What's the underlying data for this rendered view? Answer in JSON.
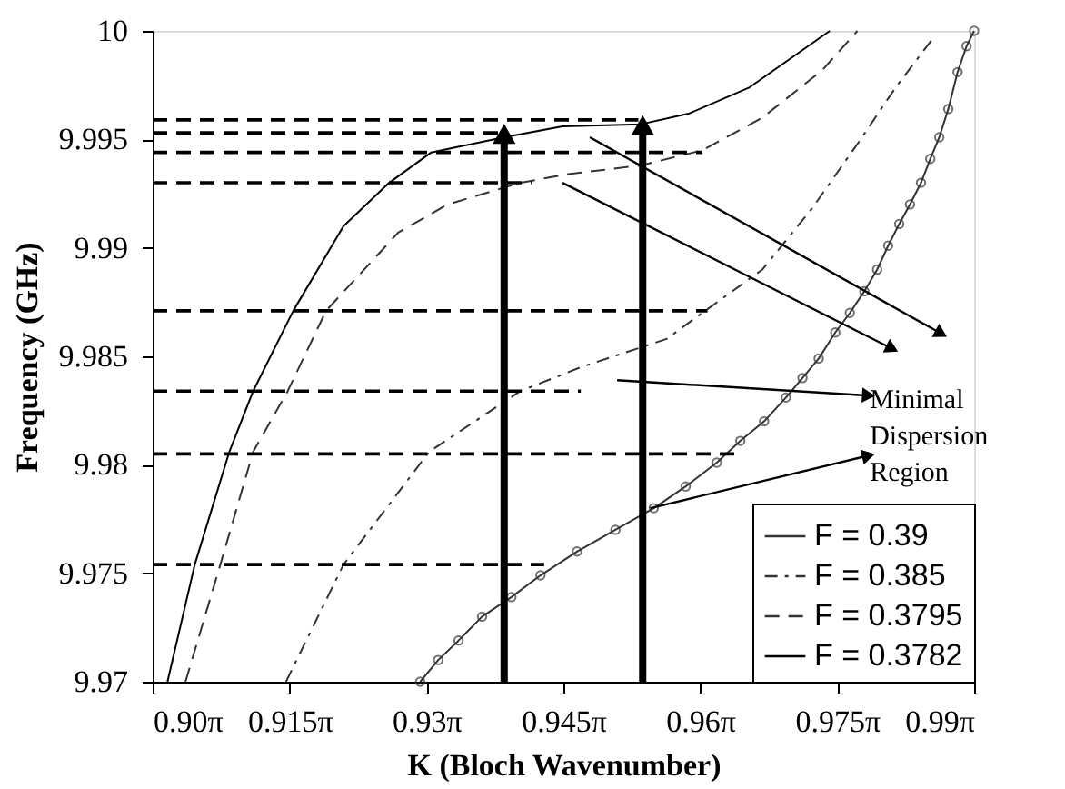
{
  "chart_data": {
    "type": "line",
    "xlabel": "K (Bloch Wavenumber)",
    "ylabel": "Frequency (GHz)",
    "xlim": [
      2.8274,
      3.1102
    ],
    "ylim": [
      9.97,
      10
    ],
    "xticks": [
      {
        "value": 2.8274,
        "label": "0.90π"
      },
      {
        "value": 2.8746,
        "label": "0.915π"
      },
      {
        "value": 2.9217,
        "label": "0.93π"
      },
      {
        "value": 2.9688,
        "label": "0.945π"
      },
      {
        "value": 3.0159,
        "label": "0.96π"
      },
      {
        "value": 3.0631,
        "label": "0.975π"
      },
      {
        "value": 3.1102,
        "label": "0.99π"
      }
    ],
    "yticks": [
      9.97,
      9.975,
      9.98,
      9.985,
      9.99,
      9.995,
      10
    ],
    "grid": false,
    "legend": "bottom right",
    "annotations": [
      "Minimal Dispersion Region"
    ],
    "series": [
      {
        "name": "F = 0.39",
        "color": "#333333",
        "line_style": "solid",
        "marker": "circle",
        "x": [
          2.9195,
          2.9257,
          2.9327,
          2.9408,
          2.9509,
          2.9609,
          2.9735,
          2.9867,
          2.9999,
          3.0109,
          3.0216,
          3.0297,
          3.0379,
          3.0454,
          3.0511,
          3.0567,
          3.0624,
          3.0674,
          3.0724,
          3.0768,
          3.0806,
          3.0844,
          3.0881,
          3.0919,
          3.0951,
          3.0982,
          3.1013,
          3.1045,
          3.1076,
          3.1102
        ],
        "values": [
          9.97,
          9.971,
          9.9719,
          9.973,
          9.9739,
          9.9749,
          9.976,
          9.977,
          9.978,
          9.979,
          9.9801,
          9.9811,
          9.982,
          9.9831,
          9.984,
          9.9849,
          9.9861,
          9.987,
          9.988,
          9.989,
          9.9901,
          9.9911,
          9.992,
          9.993,
          9.9941,
          9.9951,
          9.9964,
          9.9981,
          9.9993,
          10.0
        ]
      },
      {
        "name": "F = 0.385",
        "color": "#333333",
        "line_style": "dashdot",
        "x": [
          2.8733,
          2.8931,
          2.9226,
          2.954,
          2.9748,
          3.0043,
          3.0166,
          3.0373,
          3.0543,
          3.0706,
          3.0832,
          3.0957
        ],
        "values": [
          9.97,
          9.9754,
          9.9806,
          9.9834,
          9.9845,
          9.9858,
          9.987,
          9.989,
          9.9918,
          9.9949,
          9.9974,
          9.9996
        ]
      },
      {
        "name": "F = 0.3795",
        "color": "#333333",
        "line_style": "dashed",
        "x": [
          2.8387,
          2.8507,
          2.862,
          2.8739,
          2.8871,
          2.9119,
          2.9289,
          2.954,
          2.9704,
          2.9955,
          3.0166,
          3.0373,
          3.058,
          3.07
        ],
        "values": [
          9.97,
          9.9754,
          9.9806,
          9.9834,
          9.9871,
          9.9907,
          9.992,
          9.993,
          9.9934,
          9.9938,
          9.9945,
          9.996,
          9.9982,
          10.0
        ]
      },
      {
        "name": "F = 0.3782",
        "color": "#000000",
        "line_style": "solid",
        "x": [
          2.8325,
          2.8419,
          2.8538,
          2.862,
          2.8758,
          2.8931,
          2.9088,
          2.9233,
          2.9484,
          2.9685,
          2.9955,
          3.0122,
          3.0329,
          3.0467,
          3.0605
        ],
        "values": [
          9.97,
          9.9754,
          9.9806,
          9.9834,
          9.9871,
          9.991,
          9.993,
          9.9944,
          9.9951,
          9.9956,
          9.9957,
          9.9962,
          9.9974,
          9.9987,
          10.0
        ]
      },
      {
        "color": "#000000",
        "line_style": "dashed",
        "x": [
          2.8274,
          2.9946
        ],
        "values": [
          9.9959,
          9.9959
        ]
      },
      {
        "color": "#000000",
        "line_style": "dashed",
        "x": [
          2.8274,
          2.9484
        ],
        "values": [
          9.9953,
          9.9953
        ]
      },
      {
        "color": "#000000",
        "line_style": "dashed",
        "x": [
          2.8274,
          3.0166
        ],
        "values": [
          9.9944,
          9.9944
        ]
      },
      {
        "color": "#000000",
        "line_style": "dashed",
        "x": [
          2.8274,
          2.9578
        ],
        "values": [
          9.993,
          9.993
        ]
      },
      {
        "color": "#000000",
        "line_style": "dashed",
        "x": [
          2.8274,
          3.0184
        ],
        "values": [
          9.9871,
          9.9871
        ]
      },
      {
        "color": "#000000",
        "line_style": "dashed",
        "x": [
          2.8274,
          2.9748
        ],
        "values": [
          9.9834,
          9.9834
        ]
      },
      {
        "color": "#000000",
        "line_style": "dashed",
        "x": [
          2.8274,
          3.0279
        ],
        "values": [
          9.9805,
          9.9805
        ]
      },
      {
        "color": "#000000",
        "line_style": "dashed",
        "x": [
          2.8274,
          2.9622
        ],
        "values": [
          9.9754,
          9.9754
        ]
      },
      {
        "color": "#000000",
        "line_style": "solid",
        "x": [
          2.9484,
          2.9484
        ],
        "values": [
          9.97,
          9.9951
        ]
      },
      {
        "color": "#000000",
        "line_style": "solid",
        "x": [
          2.9961,
          2.9961
        ],
        "values": [
          9.97,
          9.9955
        ]
      },
      {
        "color": "#000000",
        "line_style": "solid",
        "x": [
          2.9779,
          3.0982
        ],
        "values": [
          9.9951,
          9.9861
        ]
      },
      {
        "color": "#000000",
        "line_style": "solid",
        "x": [
          2.9685,
          3.0813
        ],
        "values": [
          9.993,
          9.9854
        ]
      },
      {
        "color": "#000000",
        "line_style": "solid",
        "x": [
          2.9873,
          3.0731
        ],
        "values": [
          9.9839,
          9.9832
        ]
      },
      {
        "color": "#000000",
        "line_style": "solid",
        "x": [
          2.9987,
          3.0731
        ],
        "values": [
          9.978,
          9.9804
        ]
      }
    ]
  }
}
